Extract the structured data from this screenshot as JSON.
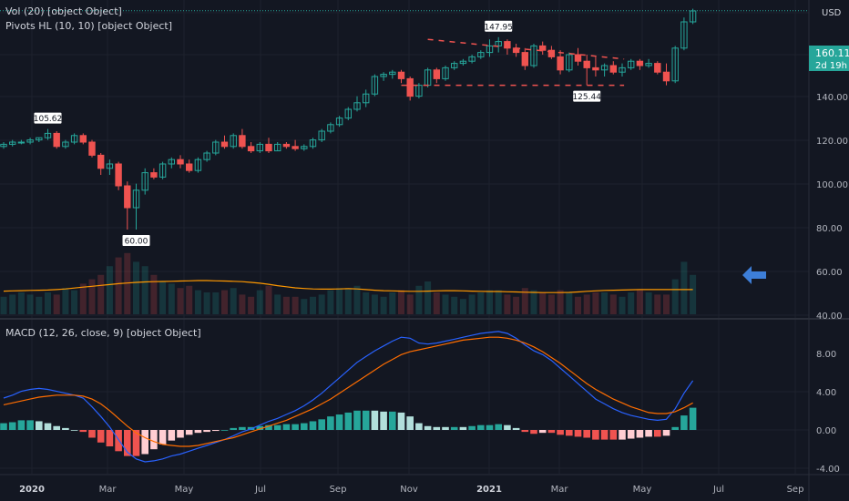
{
  "legend": {
    "vol": "Vol (20) [object Object]",
    "pivots": "Pivots HL (10, 10) [object Object]",
    "macd": "MACD (12, 26, close, 9) [object Object]"
  },
  "currency": "USD",
  "last_price": "160.11",
  "countdown": "2d 19h",
  "colors": {
    "bg": "#131722",
    "up": "#26a69a",
    "down": "#ef5350",
    "macd_line": "#2962ff",
    "signal_line": "#ff6d00",
    "vol_ma": "#ff9800",
    "hist_up_strong": "#26a69a",
    "hist_up_weak": "#b2dfdb",
    "hist_down_strong": "#ef5350",
    "hist_down_weak": "#ffcdd2",
    "grid": "#1e222d",
    "arrow": "#3d7ed8"
  },
  "chart_data": [
    {
      "type": "candlestick",
      "price_axis": {
        "ticks": [
          "140.00",
          "120.00",
          "100.00",
          "80.00",
          "60.00",
          "40.00"
        ],
        "range": [
          40,
          160
        ]
      },
      "time_axis": {
        "ticks": [
          "2020",
          "Mar",
          "May",
          "Jul",
          "Sep",
          "Nov",
          "2021",
          "Mar",
          "May",
          "Jul",
          "Sep"
        ]
      },
      "pivot_labels": [
        "105.62",
        "60.00",
        "147.95",
        "125.44"
      ],
      "trendlines": [
        {
          "from": [
            48,
            147
          ],
          "to": [
            63,
            138
          ]
        },
        {
          "from": [
            45,
            126
          ],
          "to": [
            63,
            126
          ]
        }
      ],
      "candles": [
        [
          0,
          98,
          100,
          97,
          99
        ],
        [
          1,
          99,
          101,
          98,
          100
        ],
        [
          2,
          100,
          101,
          99,
          100
        ],
        [
          3,
          100,
          102,
          99,
          101
        ],
        [
          4,
          101,
          102,
          100,
          102
        ],
        [
          5,
          102,
          106,
          101,
          104
        ],
        [
          6,
          104,
          105,
          97,
          98
        ],
        [
          7,
          98,
          101,
          97,
          100
        ],
        [
          8,
          100,
          104,
          99,
          103
        ],
        [
          9,
          103,
          104,
          99,
          100
        ],
        [
          10,
          100,
          101,
          93,
          94
        ],
        [
          11,
          94,
          95,
          85,
          88
        ],
        [
          12,
          88,
          92,
          85,
          90
        ],
        [
          13,
          90,
          91,
          78,
          80
        ],
        [
          14,
          80,
          82,
          60,
          70
        ],
        [
          15,
          70,
          81,
          60,
          78
        ],
        [
          16,
          78,
          88,
          76,
          86
        ],
        [
          17,
          86,
          88,
          83,
          84
        ],
        [
          18,
          84,
          91,
          83,
          90
        ],
        [
          19,
          90,
          93,
          88,
          92
        ],
        [
          20,
          92,
          94,
          88,
          90
        ],
        [
          21,
          90,
          92,
          86,
          87
        ],
        [
          22,
          87,
          93,
          86,
          92
        ],
        [
          23,
          92,
          96,
          91,
          95
        ],
        [
          24,
          95,
          101,
          94,
          100
        ],
        [
          25,
          100,
          103,
          97,
          98
        ],
        [
          26,
          98,
          104,
          97,
          103
        ],
        [
          27,
          103,
          106,
          97,
          98
        ],
        [
          28,
          98,
          100,
          95,
          96
        ],
        [
          29,
          96,
          100,
          95,
          99
        ],
        [
          30,
          99,
          102,
          95,
          96
        ],
        [
          31,
          96,
          100,
          96,
          99
        ],
        [
          32,
          99,
          100,
          97,
          98
        ],
        [
          33,
          98,
          101,
          96,
          97
        ],
        [
          34,
          97,
          99,
          96,
          98
        ],
        [
          35,
          98,
          102,
          97,
          101
        ],
        [
          36,
          101,
          106,
          100,
          105
        ],
        [
          37,
          105,
          109,
          104,
          108
        ],
        [
          38,
          108,
          112,
          107,
          111
        ],
        [
          39,
          111,
          116,
          110,
          115
        ],
        [
          40,
          115,
          121,
          114,
          118
        ],
        [
          41,
          118,
          124,
          116,
          122
        ],
        [
          42,
          122,
          131,
          121,
          130
        ],
        [
          43,
          130,
          132,
          128,
          131
        ],
        [
          44,
          131,
          133,
          129,
          132
        ],
        [
          45,
          132,
          133,
          127,
          129
        ],
        [
          46,
          129,
          130,
          119,
          121
        ],
        [
          47,
          121,
          127,
          120,
          126
        ],
        [
          48,
          126,
          134,
          125,
          133
        ],
        [
          49,
          133,
          134,
          127,
          129
        ],
        [
          50,
          129,
          135,
          128,
          134
        ],
        [
          51,
          134,
          137,
          133,
          136
        ],
        [
          52,
          136,
          138,
          135,
          137
        ],
        [
          53,
          137,
          140,
          136,
          139
        ],
        [
          54,
          139,
          142,
          138,
          141
        ],
        [
          55,
          141,
          147,
          139,
          144
        ],
        [
          56,
          144,
          148,
          141,
          146
        ],
        [
          57,
          146,
          147,
          140,
          143
        ],
        [
          58,
          143,
          145,
          139,
          141
        ],
        [
          59,
          141,
          143,
          133,
          135
        ],
        [
          60,
          135,
          145,
          134,
          144
        ],
        [
          61,
          144,
          146,
          140,
          142
        ],
        [
          62,
          142,
          144,
          138,
          139
        ],
        [
          63,
          139,
          142,
          131,
          133
        ],
        [
          64,
          133,
          141,
          132,
          140
        ],
        [
          65,
          140,
          143,
          135,
          137
        ],
        [
          66,
          137,
          140,
          126,
          134
        ],
        [
          67,
          134,
          139,
          130,
          133
        ],
        [
          68,
          133,
          136,
          130,
          135
        ],
        [
          69,
          135,
          137,
          131,
          132
        ],
        [
          70,
          132,
          136,
          130,
          134
        ],
        [
          71,
          134,
          138,
          133,
          137
        ],
        [
          72,
          137,
          138,
          133,
          135
        ],
        [
          73,
          135,
          138,
          134,
          136
        ],
        [
          74,
          136,
          137,
          131,
          132
        ],
        [
          75,
          132,
          136,
          126,
          128
        ],
        [
          76,
          128,
          144,
          127,
          143
        ],
        [
          77,
          143,
          157,
          142,
          155
        ],
        [
          78,
          155,
          161,
          154,
          160
        ]
      ],
      "volume": [
        48,
        49,
        50,
        49,
        48,
        50,
        49,
        52,
        51,
        54,
        56,
        58,
        62,
        66,
        68,
        64,
        62,
        58,
        55,
        54,
        52,
        53,
        51,
        50,
        50,
        51,
        52,
        49,
        48,
        51,
        53,
        49,
        48,
        48,
        47,
        48,
        49,
        51,
        52,
        52,
        53,
        50,
        49,
        48,
        50,
        51,
        49,
        53,
        55,
        50,
        49,
        48,
        47,
        49,
        50,
        51,
        51,
        49,
        48,
        52,
        51,
        50,
        49,
        51,
        50,
        48,
        49,
        50,
        50,
        49,
        48,
        50,
        51,
        50,
        49,
        49,
        56,
        64,
        58
      ],
      "volume_ma": [
        50.6,
        50.7,
        50.8,
        50.9,
        51,
        51.1,
        51.3,
        51.6,
        52,
        52.4,
        52.8,
        53.2,
        53.6,
        54,
        54.3,
        54.6,
        54.8,
        54.9,
        55,
        55.1,
        55.2,
        55.3,
        55.4,
        55.4,
        55.3,
        55.2,
        55.1,
        54.9,
        54.6,
        54.2,
        53.7,
        53.1,
        52.6,
        52.1,
        51.8,
        51.6,
        51.5,
        51.5,
        51.6,
        51.7,
        51.6,
        51.3,
        51,
        50.8,
        50.7,
        50.6,
        50.5,
        50.5,
        50.6,
        50.7,
        50.8,
        50.8,
        50.7,
        50.6,
        50.5,
        50.4,
        50.4,
        50.3,
        50.2,
        50.1,
        50,
        49.9,
        49.9,
        49.9,
        50,
        50.2,
        50.5,
        50.7,
        50.9,
        51,
        51.1,
        51.2,
        51.3,
        51.3,
        51.3,
        51.3,
        51.3,
        51.3,
        51.3
      ]
    },
    {
      "type": "macd",
      "y_ticks": [
        "8.00",
        "4.00",
        "0.00",
        "-4.00"
      ],
      "y_range": [
        -5,
        10.5
      ],
      "macd": [
        3.3,
        3.6,
        4,
        4.2,
        4.3,
        4.2,
        4,
        3.8,
        3.6,
        3.3,
        2.4,
        1.4,
        0.3,
        -1,
        -2.3,
        -3,
        -3.3,
        -3.2,
        -3,
        -2.7,
        -2.5,
        -2.2,
        -1.9,
        -1.6,
        -1.3,
        -1,
        -0.6,
        -0.2,
        0.1,
        0.5,
        0.9,
        1.2,
        1.6,
        2,
        2.5,
        3.1,
        3.8,
        4.6,
        5.4,
        6.2,
        7,
        7.6,
        8.2,
        8.7,
        9.2,
        9.6,
        9.5,
        9,
        8.9,
        9,
        9.2,
        9.4,
        9.6,
        9.8,
        10,
        10.1,
        10.2,
        10,
        9.5,
        8.8,
        8.2,
        7.8,
        7.2,
        6.4,
        5.6,
        4.8,
        4,
        3.2,
        2.7,
        2.2,
        1.8,
        1.5,
        1.3,
        1.1,
        1,
        1.1,
        2.2,
        3.8,
        5.1
      ],
      "signal": [
        2.6,
        2.8,
        3,
        3.2,
        3.4,
        3.5,
        3.6,
        3.6,
        3.6,
        3.5,
        3.2,
        2.7,
        2,
        1.2,
        0.4,
        -0.3,
        -0.8,
        -1.2,
        -1.5,
        -1.6,
        -1.7,
        -1.7,
        -1.6,
        -1.4,
        -1.2,
        -1,
        -0.8,
        -0.5,
        -0.2,
        0.1,
        0.4,
        0.7,
        1,
        1.4,
        1.8,
        2.2,
        2.7,
        3.2,
        3.8,
        4.4,
        5,
        5.6,
        6.2,
        6.8,
        7.3,
        7.8,
        8.1,
        8.3,
        8.5,
        8.7,
        8.9,
        9.1,
        9.3,
        9.4,
        9.5,
        9.6,
        9.6,
        9.5,
        9.3,
        9,
        8.6,
        8.1,
        7.5,
        6.9,
        6.2,
        5.5,
        4.8,
        4.2,
        3.7,
        3.2,
        2.8,
        2.4,
        2.1,
        1.8,
        1.7,
        1.7,
        1.9,
        2.3,
        2.8
      ]
    }
  ]
}
